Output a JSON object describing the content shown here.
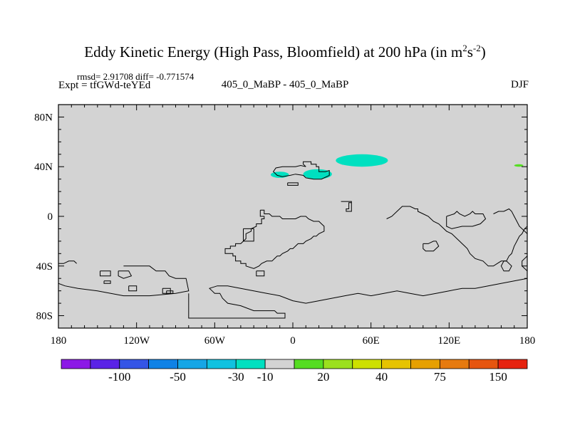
{
  "chart_data": {
    "type": "heatmap",
    "title_main": "Eddy Kinetic Energy (High Pass, Bloomfield) at 200 hPa (in m",
    "title_units": {
      "m": "2",
      "s": "-2"
    },
    "title_close": ")",
    "stats_label": "rmsd= 2.91708 diff= -0.771574",
    "expt_label": "Expt = tfGWd-teYEd",
    "comparison_label": "405_0_MaBP - 405_0_MaBP",
    "season": "DJF",
    "xlim": [
      -180,
      180
    ],
    "ylim": [
      -90,
      90
    ],
    "x_ticks": [
      {
        "value": -180,
        "label": "180"
      },
      {
        "value": -120,
        "label": "120W"
      },
      {
        "value": -60,
        "label": "60W"
      },
      {
        "value": 0,
        "label": "0"
      },
      {
        "value": 60,
        "label": "60E"
      },
      {
        "value": 120,
        "label": "120E"
      },
      {
        "value": 180,
        "label": "180"
      }
    ],
    "y_ticks": [
      {
        "value": 80,
        "label": "80N"
      },
      {
        "value": 40,
        "label": "40N"
      },
      {
        "value": 0,
        "label": "0"
      },
      {
        "value": -40,
        "label": "40S"
      },
      {
        "value": -80,
        "label": "80S"
      }
    ],
    "background_color": "#d3d3d3",
    "anomaly_patches": [
      {
        "lon_range": [
          33,
          73
        ],
        "lat_range": [
          40,
          50
        ],
        "color": "#00e0c0"
      },
      {
        "lon_range": [
          8,
          30
        ],
        "lat_range": [
          30,
          38
        ],
        "color": "#00e0c0"
      },
      {
        "lon_range": [
          -17,
          -3
        ],
        "lat_range": [
          31,
          36
        ],
        "color": "#00e0c0"
      },
      {
        "lon_range": [
          170,
          177
        ],
        "lat_range": [
          40,
          42
        ],
        "color": "#55dd22"
      }
    ],
    "colorbar": {
      "colors": [
        "#8c19e6",
        "#5a23e6",
        "#3555e6",
        "#0f82e6",
        "#16a6e6",
        "#10c2e0",
        "#00e0c0",
        "#d3d3d3",
        "#55dd22",
        "#9be01e",
        "#cde000",
        "#e6c300",
        "#e6a000",
        "#e67a0f",
        "#e6550f",
        "#e6230f"
      ],
      "labels": [
        {
          "boundary": 2,
          "text": "-100"
        },
        {
          "boundary": 4,
          "text": "-50"
        },
        {
          "boundary": 6,
          "text": "-30"
        },
        {
          "boundary": 7,
          "text": "-10"
        },
        {
          "boundary": 9,
          "text": "20"
        },
        {
          "boundary": 11,
          "text": "40"
        },
        {
          "boundary": 13,
          "text": "75"
        },
        {
          "boundary": 15,
          "text": "150"
        }
      ]
    },
    "coastlines": [
      [
        [
          10,
          40
        ],
        [
          8,
          42
        ],
        [
          8,
          44
        ],
        [
          14,
          44
        ],
        [
          14,
          42
        ],
        [
          18,
          42
        ],
        [
          18,
          40
        ],
        [
          20,
          40
        ],
        [
          20,
          36
        ],
        [
          25,
          36
        ],
        [
          28,
          37
        ],
        [
          28,
          33
        ],
        [
          22,
          30
        ],
        [
          16,
          30
        ],
        [
          10,
          31
        ],
        [
          8,
          33
        ],
        [
          2,
          34
        ],
        [
          -2,
          33
        ],
        [
          -8,
          32
        ],
        [
          -12,
          33
        ],
        [
          -15,
          36
        ],
        [
          -13,
          39
        ],
        [
          -8,
          40
        ],
        [
          -2,
          40
        ],
        [
          2,
          40
        ],
        [
          6,
          41
        ],
        [
          10,
          40
        ]
      ],
      [
        [
          -4,
          27
        ],
        [
          4,
          27
        ],
        [
          4,
          25
        ],
        [
          -4,
          25
        ],
        [
          -4,
          27
        ]
      ],
      [
        [
          37,
          12
        ],
        [
          45,
          12
        ],
        [
          45,
          11
        ],
        [
          43,
          11
        ],
        [
          43,
          6
        ],
        [
          41,
          6
        ],
        [
          41,
          4
        ],
        [
          45,
          4
        ],
        [
          45,
          12
        ]
      ],
      [
        [
          -25,
          5
        ],
        [
          -22,
          5
        ],
        [
          -22,
          2
        ],
        [
          -18,
          2
        ],
        [
          -16,
          0
        ],
        [
          -10,
          0
        ],
        [
          -8,
          -2
        ],
        [
          -6,
          -2
        ],
        [
          2,
          -2
        ],
        [
          6,
          0
        ],
        [
          10,
          0
        ],
        [
          12,
          -2
        ],
        [
          16,
          -4
        ],
        [
          20,
          -4
        ],
        [
          22,
          -6
        ],
        [
          24,
          -8
        ],
        [
          24,
          -12
        ],
        [
          20,
          -14
        ],
        [
          18,
          -16
        ],
        [
          16,
          -16
        ],
        [
          14,
          -18
        ],
        [
          10,
          -20
        ],
        [
          8,
          -22
        ],
        [
          4,
          -22
        ],
        [
          2,
          -24
        ],
        [
          0,
          -26
        ],
        [
          -2,
          -26
        ],
        [
          -4,
          -28
        ],
        [
          -8,
          -30
        ],
        [
          -10,
          -32
        ],
        [
          -12,
          -32
        ],
        [
          -14,
          -34
        ],
        [
          -16,
          -36
        ],
        [
          -20,
          -36
        ],
        [
          -24,
          -38
        ],
        [
          -26,
          -40
        ],
        [
          -30,
          -42
        ],
        [
          -36,
          -40
        ],
        [
          -36,
          -38
        ],
        [
          -40,
          -38
        ],
        [
          -40,
          -36
        ],
        [
          -44,
          -36
        ],
        [
          -44,
          -32
        ],
        [
          -46,
          -32
        ],
        [
          -46,
          -30
        ],
        [
          -52,
          -30
        ],
        [
          -52,
          -26
        ],
        [
          -48,
          -26
        ],
        [
          -48,
          -24
        ],
        [
          -44,
          -24
        ],
        [
          -44,
          -22
        ],
        [
          -40,
          -22
        ],
        [
          -38,
          -20
        ],
        [
          -36,
          -18
        ],
        [
          -36,
          -14
        ],
        [
          -32,
          -12
        ],
        [
          -32,
          -10
        ],
        [
          -28,
          -8
        ],
        [
          -28,
          -6
        ],
        [
          -24,
          -6
        ],
        [
          -24,
          -2
        ],
        [
          -22,
          -2
        ],
        [
          -22,
          0
        ],
        [
          -25,
          0
        ],
        [
          -25,
          5
        ]
      ],
      [
        [
          -38,
          -10
        ],
        [
          -30,
          -10
        ],
        [
          -30,
          -20
        ],
        [
          -38,
          -20
        ],
        [
          -38,
          -10
        ]
      ],
      [
        [
          -130,
          -40
        ],
        [
          -110,
          -40
        ],
        [
          -105,
          -44
        ],
        [
          -98,
          -44
        ],
        [
          -95,
          -48
        ],
        [
          -90,
          -50
        ],
        [
          -82,
          -50
        ],
        [
          -80,
          -60
        ],
        [
          -90,
          -62
        ],
        [
          -110,
          -64
        ],
        [
          -130,
          -64
        ],
        [
          -150,
          -60
        ],
        [
          -165,
          -58
        ],
        [
          -175,
          -56
        ],
        [
          -180,
          -54
        ]
      ],
      [
        [
          -180,
          -38
        ],
        [
          -176,
          -38
        ],
        [
          -172,
          -36
        ],
        [
          -168,
          -36
        ],
        [
          -166,
          -38
        ]
      ],
      [
        [
          -134,
          -44
        ],
        [
          -126,
          -44
        ],
        [
          -124,
          -48
        ],
        [
          -130,
          -50
        ],
        [
          -134,
          -48
        ],
        [
          -134,
          -44
        ]
      ],
      [
        [
          -100,
          -58
        ],
        [
          -94,
          -58
        ],
        [
          -94,
          -62
        ],
        [
          -100,
          -62
        ],
        [
          -100,
          -58
        ]
      ],
      [
        [
          -80,
          -62
        ],
        [
          -80,
          -82
        ],
        [
          -60,
          -82
        ],
        [
          -40,
          -82
        ],
        [
          -20,
          -82
        ],
        [
          -6,
          -82
        ],
        [
          -6,
          -78
        ],
        [
          -12,
          -78
        ],
        [
          -14,
          -76
        ],
        [
          -30,
          -76
        ],
        [
          -40,
          -72
        ],
        [
          -50,
          -70
        ],
        [
          -54,
          -66
        ],
        [
          -56,
          -62
        ],
        [
          -60,
          -62
        ],
        [
          -62,
          -60
        ],
        [
          -64,
          -58
        ],
        [
          -58,
          -56
        ],
        [
          -50,
          -56
        ],
        [
          -40,
          -58
        ],
        [
          -30,
          -60
        ],
        [
          -20,
          -62
        ],
        [
          -10,
          -64
        ],
        [
          0,
          -68
        ],
        [
          10,
          -70
        ],
        [
          20,
          -68
        ],
        [
          30,
          -66
        ],
        [
          40,
          -64
        ],
        [
          50,
          -62
        ],
        [
          60,
          -64
        ],
        [
          70,
          -62
        ],
        [
          80,
          -60
        ],
        [
          90,
          -62
        ],
        [
          100,
          -64
        ],
        [
          110,
          -62
        ],
        [
          120,
          -60
        ],
        [
          130,
          -58
        ],
        [
          140,
          -58
        ],
        [
          150,
          -56
        ],
        [
          160,
          -54
        ],
        [
          170,
          -52
        ],
        [
          180,
          -50
        ]
      ],
      [
        [
          72,
          -2
        ],
        [
          76,
          0
        ],
        [
          80,
          4
        ],
        [
          82,
          6
        ],
        [
          84,
          8
        ],
        [
          90,
          8
        ],
        [
          94,
          6
        ],
        [
          96,
          6
        ],
        [
          96,
          4
        ],
        [
          100,
          2
        ],
        [
          104,
          0
        ],
        [
          106,
          -2
        ],
        [
          108,
          -4
        ],
        [
          112,
          -6
        ],
        [
          116,
          -10
        ],
        [
          118,
          -12
        ],
        [
          122,
          -14
        ],
        [
          126,
          -18
        ],
        [
          128,
          -20
        ],
        [
          130,
          -22
        ],
        [
          132,
          -24
        ],
        [
          134,
          -26
        ],
        [
          136,
          -30
        ],
        [
          140,
          -34
        ],
        [
          146,
          -36
        ],
        [
          150,
          -40
        ],
        [
          154,
          -40
        ],
        [
          160,
          -36
        ],
        [
          164,
          -36
        ],
        [
          166,
          -32
        ],
        [
          168,
          -30
        ],
        [
          170,
          -24
        ],
        [
          172,
          -20
        ],
        [
          174,
          -16
        ],
        [
          176,
          -14
        ],
        [
          178,
          -10
        ],
        [
          180,
          -8
        ]
      ],
      [
        [
          100,
          -22
        ],
        [
          104,
          -22
        ],
        [
          108,
          -20
        ],
        [
          110,
          -20
        ],
        [
          112,
          -24
        ],
        [
          108,
          -28
        ],
        [
          102,
          -28
        ],
        [
          100,
          -26
        ],
        [
          100,
          -22
        ]
      ],
      [
        [
          118,
          0
        ],
        [
          124,
          2
        ],
        [
          126,
          4
        ],
        [
          128,
          2
        ],
        [
          132,
          0
        ],
        [
          136,
          2
        ],
        [
          138,
          4
        ],
        [
          140,
          2
        ],
        [
          146,
          2
        ],
        [
          148,
          -2
        ],
        [
          144,
          -6
        ],
        [
          138,
          -8
        ],
        [
          130,
          -8
        ],
        [
          122,
          -10
        ],
        [
          118,
          -8
        ],
        [
          118,
          0
        ]
      ],
      [
        [
          154,
          2
        ],
        [
          158,
          4
        ],
        [
          162,
          4
        ],
        [
          166,
          6
        ],
        [
          168,
          4
        ],
        [
          170,
          0
        ],
        [
          172,
          -4
        ],
        [
          174,
          -8
        ],
        [
          178,
          -12
        ],
        [
          180,
          -14
        ]
      ],
      [
        [
          180,
          -44
        ],
        [
          178,
          -42
        ],
        [
          176,
          -40
        ],
        [
          176,
          -36
        ],
        [
          178,
          -34
        ],
        [
          180,
          -32
        ]
      ],
      [
        [
          162,
          -36
        ],
        [
          160,
          -40
        ],
        [
          162,
          -44
        ],
        [
          166,
          -44
        ],
        [
          168,
          -40
        ],
        [
          164,
          -36
        ],
        [
          162,
          -36
        ]
      ],
      [
        [
          -28,
          -44
        ],
        [
          -22,
          -44
        ],
        [
          -22,
          -48
        ],
        [
          -28,
          -48
        ],
        [
          -28,
          -44
        ]
      ],
      [
        [
          -126,
          -56
        ],
        [
          -120,
          -56
        ],
        [
          -120,
          -60
        ],
        [
          -126,
          -60
        ],
        [
          -126,
          -56
        ]
      ],
      [
        [
          -148,
          -44
        ],
        [
          -140,
          -44
        ],
        [
          -140,
          -48
        ],
        [
          -148,
          -48
        ],
        [
          -148,
          -44
        ]
      ],
      [
        [
          -145,
          -52
        ],
        [
          -140,
          -52
        ],
        [
          -140,
          -54
        ],
        [
          -145,
          -54
        ],
        [
          -145,
          -52
        ]
      ],
      [
        [
          -97,
          -60
        ],
        [
          -92,
          -60
        ],
        [
          -92,
          -62
        ],
        [
          -97,
          -62
        ],
        [
          -97,
          -60
        ]
      ]
    ]
  }
}
